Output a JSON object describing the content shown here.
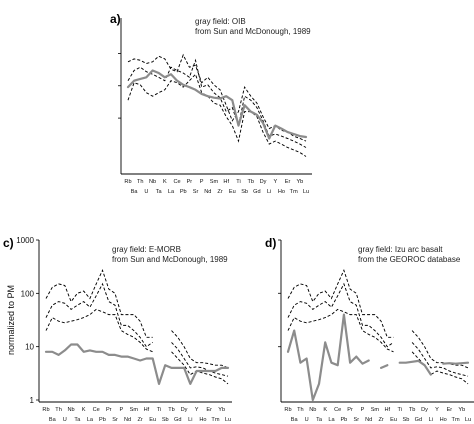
{
  "elements": [
    "Rb",
    "Ba",
    "Th",
    "U",
    "Nb",
    "Ta",
    "K",
    "La",
    "Ce",
    "Pb",
    "Pr",
    "Sr",
    "P",
    "Nd",
    "Sm",
    "Zr",
    "Hf",
    "Eu",
    "Ti",
    "Sb",
    "Tb",
    "Gd",
    "Dy",
    "Li",
    "Y",
    "Ho",
    "Er",
    "Tm",
    "Yb",
    "Lu"
  ],
  "chart_data": [
    {
      "type": "line",
      "panel_label": "a)",
      "title": "gray field: OIB",
      "subtitle": "from Sun and McDonough, 1989",
      "ylabel": "",
      "y_scale": "log",
      "ylim": [
        1,
        1000
      ],
      "y_ticks": [],
      "series": [
        {
          "style": "gray",
          "values": [
            45,
            60,
            65,
            70,
            95,
            85,
            70,
            80,
            60,
            50,
            45,
            40,
            33,
            30,
            28,
            27,
            30,
            25,
            8,
            20,
            15,
            13,
            9,
            4.5,
            8,
            7,
            6,
            5.5,
            5,
            4.8
          ]
        },
        {
          "style": "dashed",
          "values": [
            140,
            160,
            150,
            130,
            140,
            180,
            160,
            100,
            90,
            190,
            110,
            120,
            55,
            70,
            50,
            40,
            20,
            10,
            15,
            45,
            30,
            22,
            12,
            7,
            8,
            6.5,
            6,
            5,
            4.5,
            4
          ]
        },
        {
          "style": "dashed",
          "values": [
            60,
            95,
            110,
            90,
            80,
            70,
            60,
            110,
            95,
            85,
            70,
            150,
            45,
            50,
            35,
            28,
            15,
            18,
            8,
            30,
            25,
            18,
            10,
            5,
            5.5,
            5,
            4.5,
            4,
            3.5,
            3
          ]
        },
        {
          "style": "dashed",
          "values": [
            25,
            55,
            50,
            35,
            30,
            35,
            40,
            60,
            55,
            45,
            60,
            80,
            35,
            30,
            22,
            20,
            12,
            8,
            4,
            15,
            15,
            12,
            6,
            3.5,
            4,
            3.5,
            3,
            2.7,
            2.4,
            2
          ]
        }
      ]
    },
    {
      "type": "line",
      "panel_label": "c)",
      "title": "gray field: E-MORB",
      "subtitle": "from Sun and McDonough, 1989",
      "ylabel": "normalized to PM",
      "y_scale": "log",
      "ylim": [
        1,
        1000
      ],
      "y_ticks": [
        "1",
        "10",
        "100",
        "1000"
      ],
      "series": [
        {
          "style": "gray",
          "values": [
            8,
            8,
            7,
            8.5,
            11,
            11,
            8,
            8.5,
            8,
            8,
            7,
            7,
            6.5,
            6.5,
            6,
            5.5,
            6,
            6,
            2,
            4.5,
            4,
            4,
            4,
            2,
            3.5,
            3.5,
            3.5,
            3.5,
            4,
            4
          ]
        },
        {
          "style": "dashed",
          "values": [
            80,
            130,
            150,
            140,
            70,
            100,
            110,
            80,
            150,
            270,
            120,
            100,
            40,
            40,
            40,
            30,
            15,
            15,
            null,
            null,
            20,
            15,
            10,
            6,
            5,
            5,
            4.8,
            4.5,
            4.5,
            4
          ]
        },
        {
          "style": "dashed",
          "values": [
            35,
            60,
            70,
            65,
            50,
            60,
            70,
            55,
            90,
            150,
            70,
            60,
            25,
            25,
            20,
            15,
            10,
            12,
            null,
            null,
            12,
            9,
            6,
            4,
            4.2,
            4,
            3.5,
            3.2,
            3,
            2.8
          ]
        },
        {
          "style": "dashed",
          "values": [
            20,
            35,
            30,
            28,
            30,
            32,
            35,
            40,
            50,
            45,
            40,
            40,
            20,
            17,
            15,
            12,
            9,
            8,
            null,
            null,
            8,
            6,
            4.5,
            3,
            3.5,
            3.2,
            3,
            2.7,
            2.5,
            2
          ]
        }
      ]
    },
    {
      "type": "line",
      "panel_label": "d)",
      "title": "gray field: Izu arc basalt",
      "subtitle": "from the GEOROC database",
      "ylabel": "",
      "y_scale": "log",
      "ylim": [
        1,
        1000
      ],
      "y_ticks": [],
      "series": [
        {
          "style": "gray",
          "values": [
            8,
            20,
            5,
            6,
            1,
            2,
            12,
            5,
            4.5,
            40,
            5,
            6.5,
            4.8,
            5.5,
            null,
            4,
            4.5,
            null,
            5,
            5,
            5.2,
            5.4,
            4.5,
            3,
            null,
            4.8,
            4.9,
            4.8,
            4.9,
            5
          ]
        },
        {
          "style": "dashed",
          "values": [
            80,
            130,
            150,
            140,
            70,
            100,
            110,
            80,
            150,
            270,
            120,
            100,
            40,
            40,
            40,
            30,
            15,
            15,
            null,
            null,
            20,
            15,
            10,
            6,
            5,
            5,
            4.8,
            4.5,
            4.5,
            4
          ]
        },
        {
          "style": "dashed",
          "values": [
            35,
            60,
            70,
            65,
            50,
            60,
            70,
            55,
            90,
            150,
            70,
            60,
            25,
            25,
            20,
            15,
            10,
            12,
            null,
            null,
            12,
            9,
            6,
            4,
            4.2,
            4,
            3.5,
            3.2,
            3,
            2.8
          ]
        },
        {
          "style": "dashed",
          "values": [
            20,
            35,
            30,
            28,
            30,
            32,
            35,
            40,
            50,
            45,
            40,
            40,
            20,
            17,
            15,
            12,
            9,
            8,
            null,
            null,
            8,
            6,
            4.5,
            3,
            3.5,
            3.2,
            3,
            2.7,
            2.5,
            2
          ]
        }
      ]
    }
  ]
}
